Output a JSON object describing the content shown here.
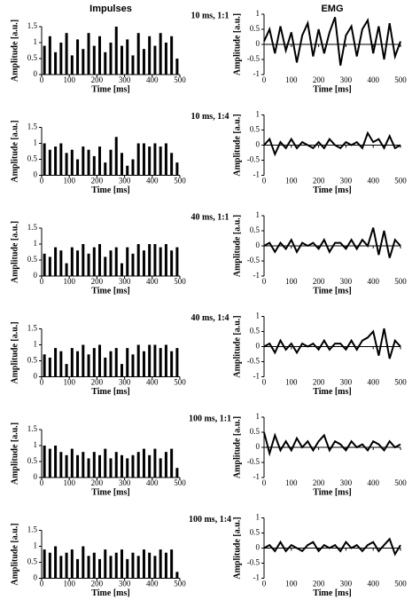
{
  "column_titles": [
    "Impulses",
    "EMG"
  ],
  "row_labels": [
    "10 ms, 1:1",
    "10 ms, 1:4",
    "40 ms, 1:1",
    "40 ms, 1:4",
    "100 ms, 1:1",
    "100 ms, 1:4"
  ],
  "chart_data": [
    {
      "type": "bar",
      "x_label": "Time [ms]",
      "y_label": "Amplitude [a.u.]",
      "color": "#000000",
      "x": [
        10,
        30,
        50,
        70,
        90,
        110,
        130,
        150,
        170,
        190,
        210,
        230,
        250,
        270,
        290,
        310,
        330,
        350,
        370,
        390,
        410,
        430,
        450,
        470,
        490
      ],
      "values": [
        0.9,
        1.2,
        0.7,
        1.0,
        1.3,
        0.6,
        1.1,
        0.8,
        1.3,
        0.9,
        1.2,
        0.7,
        1.0,
        1.5,
        0.9,
        1.1,
        0.6,
        1.3,
        0.8,
        1.2,
        0.9,
        1.3,
        1.0,
        1.2,
        0.5
      ],
      "xlim": [
        0,
        500
      ],
      "xticks": [
        0,
        100,
        200,
        300,
        400,
        500
      ],
      "ylim": [
        0,
        1.5
      ],
      "yticks": [
        0,
        0.5,
        1,
        1.5
      ]
    },
    {
      "type": "line",
      "x_label": "Time [ms]",
      "y_label": "Amplitude [a.u.]",
      "color": "#000000",
      "x": [
        0,
        20,
        40,
        60,
        80,
        100,
        120,
        140,
        160,
        180,
        200,
        220,
        240,
        260,
        280,
        300,
        320,
        340,
        360,
        380,
        400,
        420,
        440,
        460,
        480,
        500
      ],
      "values": [
        0.1,
        0.5,
        -0.3,
        0.6,
        -0.2,
        0.4,
        -0.6,
        0.3,
        0.7,
        -0.4,
        0.5,
        -0.3,
        0.4,
        0.9,
        -0.7,
        0.3,
        0.6,
        -0.4,
        0.5,
        0.8,
        -0.3,
        0.6,
        -0.5,
        0.7,
        -0.4,
        0.1
      ],
      "xlim": [
        0,
        500
      ],
      "xticks": [
        0,
        100,
        200,
        300,
        400,
        500
      ],
      "ylim": [
        -1,
        1
      ],
      "yticks": [
        -1,
        -0.5,
        0,
        0.5,
        1
      ]
    },
    {
      "type": "bar",
      "x_label": "Time [ms]",
      "y_label": "Amplitude [a.u.]",
      "color": "#000000",
      "x": [
        10,
        30,
        50,
        70,
        90,
        110,
        130,
        150,
        170,
        190,
        210,
        230,
        250,
        270,
        290,
        310,
        330,
        350,
        370,
        390,
        410,
        430,
        450,
        470,
        490
      ],
      "values": [
        1.0,
        0.8,
        0.9,
        1.0,
        0.7,
        0.8,
        0.5,
        0.9,
        0.8,
        0.6,
        0.9,
        0.4,
        0.8,
        1.2,
        0.7,
        0.3,
        0.5,
        1.0,
        1.0,
        0.9,
        1.0,
        0.9,
        1.0,
        0.7,
        0.4
      ],
      "xlim": [
        0,
        500
      ],
      "xticks": [
        0,
        100,
        200,
        300,
        400,
        500
      ],
      "ylim": [
        0,
        1.5
      ],
      "yticks": [
        0,
        0.5,
        1,
        1.5
      ]
    },
    {
      "type": "line",
      "x_label": "Time [ms]",
      "y_label": "Amplitude [a.u.]",
      "color": "#000000",
      "x": [
        0,
        20,
        40,
        60,
        80,
        100,
        120,
        140,
        160,
        180,
        200,
        220,
        240,
        260,
        280,
        300,
        320,
        340,
        360,
        380,
        400,
        420,
        440,
        460,
        480,
        500
      ],
      "values": [
        0.0,
        0.2,
        -0.3,
        0.1,
        -0.1,
        0.2,
        -0.1,
        0.1,
        0.0,
        -0.1,
        0.1,
        -0.1,
        0.2,
        0.0,
        -0.1,
        0.1,
        0.0,
        0.1,
        -0.1,
        0.4,
        0.1,
        0.2,
        -0.1,
        0.3,
        -0.1,
        0.0
      ],
      "xlim": [
        0,
        500
      ],
      "xticks": [
        0,
        100,
        200,
        300,
        400,
        500
      ],
      "ylim": [
        -1,
        1
      ],
      "yticks": [
        -1,
        -0.5,
        0,
        0.5,
        1
      ]
    },
    {
      "type": "bar",
      "x_label": "Time [ms]",
      "y_label": "Amplitude [a.u.]",
      "color": "#000000",
      "x": [
        10,
        30,
        50,
        70,
        90,
        110,
        130,
        150,
        170,
        190,
        210,
        230,
        250,
        270,
        290,
        310,
        330,
        350,
        370,
        390,
        410,
        430,
        450,
        470,
        490
      ],
      "values": [
        0.7,
        0.6,
        0.9,
        0.8,
        0.4,
        0.9,
        0.8,
        1.0,
        0.7,
        0.9,
        1.0,
        0.6,
        0.8,
        0.9,
        0.4,
        0.9,
        0.7,
        1.0,
        0.8,
        1.0,
        1.0,
        0.9,
        1.0,
        0.8,
        0.9
      ],
      "xlim": [
        0,
        500
      ],
      "xticks": [
        0,
        100,
        200,
        300,
        400,
        500
      ],
      "ylim": [
        0,
        1.5
      ],
      "yticks": [
        0,
        0.5,
        1,
        1.5
      ]
    },
    {
      "type": "line",
      "x_label": "Time [ms]",
      "y_label": "Amplitude [a.u.]",
      "color": "#000000",
      "x": [
        0,
        20,
        40,
        60,
        80,
        100,
        120,
        140,
        160,
        180,
        200,
        220,
        240,
        260,
        280,
        300,
        320,
        340,
        360,
        380,
        400,
        420,
        440,
        460,
        480,
        500
      ],
      "values": [
        0.0,
        0.1,
        -0.2,
        0.1,
        -0.1,
        0.2,
        -0.2,
        0.1,
        0.0,
        0.1,
        -0.1,
        0.2,
        -0.2,
        0.1,
        0.1,
        -0.1,
        0.2,
        -0.1,
        0.2,
        0.0,
        0.6,
        -0.3,
        0.5,
        -0.4,
        0.2,
        0.0
      ],
      "xlim": [
        0,
        500
      ],
      "xticks": [
        0,
        100,
        200,
        300,
        400,
        500
      ],
      "ylim": [
        -1,
        1
      ],
      "yticks": [
        -1,
        -0.5,
        0,
        0.5,
        1
      ]
    },
    {
      "type": "bar",
      "x_label": "Time [ms]",
      "y_label": "Amplitude [a.u.]",
      "color": "#000000",
      "x": [
        10,
        30,
        50,
        70,
        90,
        110,
        130,
        150,
        170,
        190,
        210,
        230,
        250,
        270,
        290,
        310,
        330,
        350,
        370,
        390,
        410,
        430,
        450,
        470,
        490
      ],
      "values": [
        0.7,
        0.6,
        0.9,
        0.8,
        0.4,
        0.9,
        0.8,
        1.0,
        0.7,
        0.9,
        1.0,
        0.6,
        0.8,
        0.9,
        0.4,
        0.9,
        0.7,
        1.0,
        0.8,
        1.0,
        1.0,
        0.9,
        1.0,
        0.8,
        0.9
      ],
      "xlim": [
        0,
        500
      ],
      "xticks": [
        0,
        100,
        200,
        300,
        400,
        500
      ],
      "ylim": [
        0,
        1.5
      ],
      "yticks": [
        0,
        0.5,
        1,
        1.5
      ]
    },
    {
      "type": "line",
      "x_label": "Time [ms]",
      "y_label": "Amplitude [a.u.]",
      "color": "#000000",
      "x": [
        0,
        20,
        40,
        60,
        80,
        100,
        120,
        140,
        160,
        180,
        200,
        220,
        240,
        260,
        280,
        300,
        320,
        340,
        360,
        380,
        400,
        420,
        440,
        460,
        480,
        500
      ],
      "values": [
        0.0,
        0.1,
        -0.2,
        0.2,
        -0.1,
        0.1,
        -0.2,
        0.1,
        0.0,
        0.1,
        -0.1,
        0.2,
        -0.1,
        0.1,
        0.1,
        -0.1,
        0.2,
        -0.1,
        0.2,
        0.3,
        0.5,
        -0.3,
        0.6,
        -0.4,
        0.2,
        0.0
      ],
      "xlim": [
        0,
        500
      ],
      "xticks": [
        0,
        100,
        200,
        300,
        400,
        500
      ],
      "ylim": [
        -1,
        1
      ],
      "yticks": [
        -1,
        -0.5,
        0,
        0.5,
        1
      ]
    },
    {
      "type": "bar",
      "x_label": "Time [ms]",
      "y_label": "Amplitude [a.u.]",
      "color": "#000000",
      "x": [
        10,
        30,
        50,
        70,
        90,
        110,
        130,
        150,
        170,
        190,
        210,
        230,
        250,
        270,
        290,
        310,
        330,
        350,
        370,
        390,
        410,
        430,
        450,
        470,
        490
      ],
      "values": [
        1.0,
        0.9,
        1.0,
        0.8,
        0.7,
        0.9,
        0.7,
        0.8,
        0.6,
        0.8,
        0.7,
        0.9,
        0.6,
        0.8,
        0.7,
        0.6,
        0.7,
        0.8,
        0.9,
        0.7,
        0.9,
        0.6,
        0.8,
        0.9,
        0.3
      ],
      "xlim": [
        0,
        500
      ],
      "xticks": [
        0,
        100,
        200,
        300,
        400,
        500
      ],
      "ylim": [
        0,
        1.5
      ],
      "yticks": [
        0,
        0.5,
        1,
        1.5
      ]
    },
    {
      "type": "line",
      "x_label": "Time [ms]",
      "y_label": "Amplitude [a.u.]",
      "color": "#000000",
      "x": [
        0,
        20,
        40,
        60,
        80,
        100,
        120,
        140,
        160,
        180,
        200,
        220,
        240,
        260,
        280,
        300,
        320,
        340,
        360,
        380,
        400,
        420,
        440,
        460,
        480,
        500
      ],
      "values": [
        0.5,
        -0.2,
        0.4,
        -0.1,
        0.2,
        -0.1,
        0.3,
        0.0,
        0.2,
        -0.1,
        0.2,
        0.4,
        -0.1,
        0.2,
        0.1,
        -0.1,
        0.2,
        0.0,
        0.1,
        -0.1,
        0.2,
        0.1,
        -0.1,
        0.2,
        0.0,
        0.1
      ],
      "xlim": [
        0,
        500
      ],
      "xticks": [
        0,
        100,
        200,
        300,
        400,
        500
      ],
      "ylim": [
        -1,
        1
      ],
      "yticks": [
        -1,
        -0.5,
        0,
        0.5,
        1
      ]
    },
    {
      "type": "bar",
      "x_label": "Time [ms]",
      "y_label": "Amplitude [a.u.]",
      "color": "#000000",
      "x": [
        10,
        30,
        50,
        70,
        90,
        110,
        130,
        150,
        170,
        190,
        210,
        230,
        250,
        270,
        290,
        310,
        330,
        350,
        370,
        390,
        410,
        430,
        450,
        470,
        490
      ],
      "values": [
        0.9,
        0.8,
        1.0,
        0.7,
        0.8,
        0.9,
        0.6,
        1.0,
        0.7,
        0.8,
        0.6,
        0.9,
        0.7,
        0.8,
        0.9,
        0.6,
        0.8,
        0.7,
        0.9,
        0.8,
        0.7,
        0.9,
        0.8,
        0.9,
        0.2
      ],
      "xlim": [
        0,
        500
      ],
      "xticks": [
        0,
        100,
        200,
        300,
        400,
        500
      ],
      "ylim": [
        0,
        1.5
      ],
      "yticks": [
        0,
        0.5,
        1,
        1.5
      ]
    },
    {
      "type": "line",
      "x_label": "Time [ms]",
      "y_label": "Amplitude [a.u.]",
      "color": "#000000",
      "x": [
        0,
        20,
        40,
        60,
        80,
        100,
        120,
        140,
        160,
        180,
        200,
        220,
        240,
        260,
        280,
        300,
        320,
        340,
        360,
        380,
        400,
        420,
        440,
        460,
        480,
        500
      ],
      "values": [
        0.0,
        0.1,
        -0.1,
        0.2,
        -0.1,
        0.1,
        0.0,
        -0.1,
        0.1,
        0.2,
        -0.1,
        0.1,
        0.0,
        0.1,
        -0.1,
        0.2,
        0.0,
        0.1,
        -0.1,
        0.1,
        0.2,
        -0.1,
        0.1,
        0.3,
        -0.2,
        0.1
      ],
      "xlim": [
        0,
        500
      ],
      "xticks": [
        0,
        100,
        200,
        300,
        400,
        500
      ],
      "ylim": [
        -1,
        1
      ],
      "yticks": [
        -1,
        -0.5,
        0,
        0.5,
        1
      ]
    }
  ]
}
